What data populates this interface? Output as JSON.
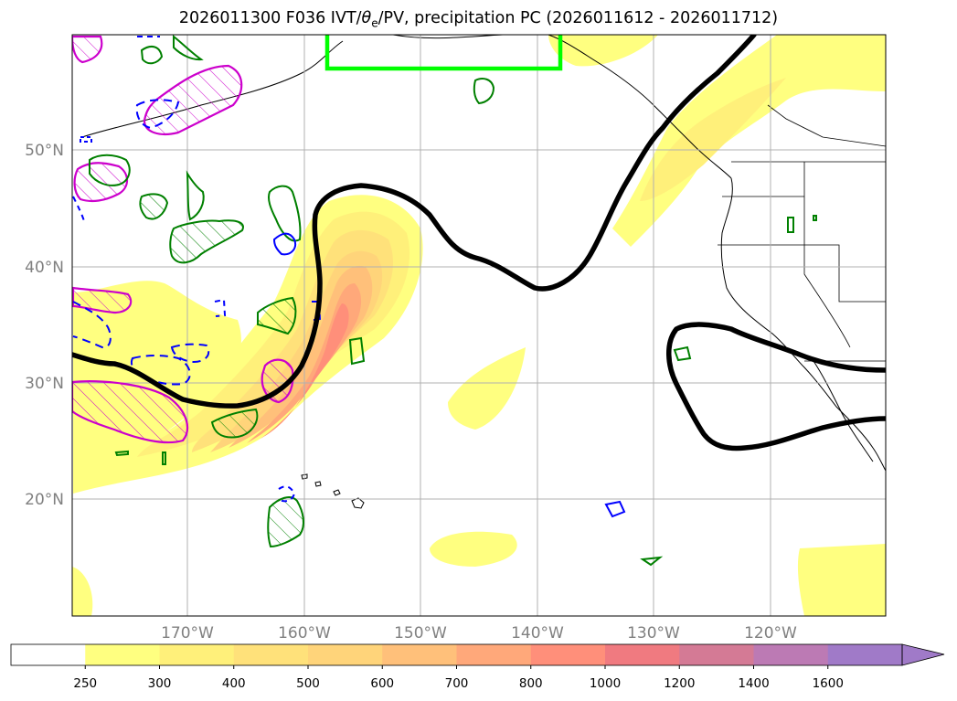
{
  "title": {
    "prefix": "2026011300 F036 IVT/",
    "theta": "θ",
    "theta_sub": "e",
    "suffix": "/PV, precipitation PC (2026011612 - 2026011712)"
  },
  "latitude_labels": [
    "50°N",
    "40°N",
    "30°N",
    "20°N"
  ],
  "longitude_labels": [
    "170°W",
    "160°W",
    "150°W",
    "140°W",
    "130°W",
    "120°W"
  ],
  "colorbar": {
    "levels": [
      "250",
      "300",
      "400",
      "500",
      "600",
      "700",
      "800",
      "1000",
      "1200",
      "1400",
      "1600"
    ],
    "colors": [
      "#ffffff",
      "#ffff80",
      "#fff07a",
      "#ffe17a",
      "#ffd47a",
      "#ffc07a",
      "#ffa87a",
      "#ff8f7a",
      "#f07a80",
      "#d47a95",
      "#bc7ab4",
      "#a07ac8"
    ],
    "extend": "max"
  },
  "legend_colors": {
    "pv_positive": "#008000",
    "pv_negative": "#0000ff",
    "theta_e": "#cc00cc",
    "jet_contour": "#000000",
    "box": "#00ff00"
  }
}
